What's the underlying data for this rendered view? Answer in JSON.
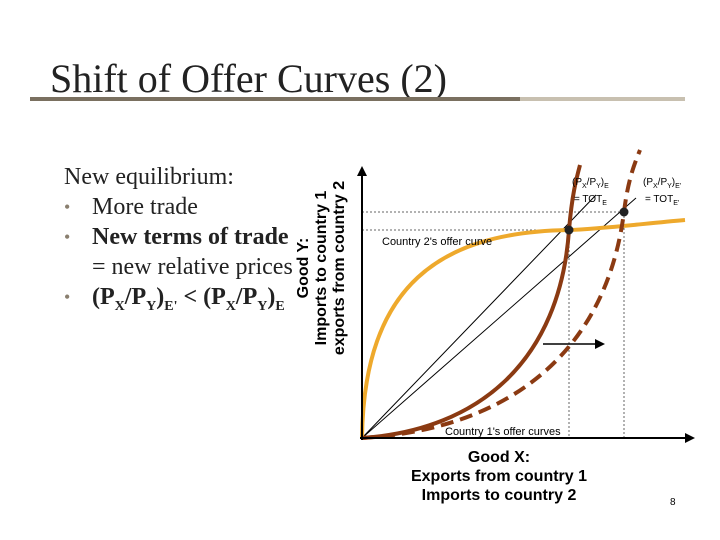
{
  "slide": {
    "title": "Shift of Offer Curves (2)",
    "page_number": "8"
  },
  "bullets": {
    "heading": "New equilibrium:",
    "item1": "More trade",
    "item2_bold": "New terms of trade",
    "item2_rest": " = new relative prices",
    "item3_p1": "(P",
    "item3_sub1": "X",
    "item3_p2": "/P",
    "item3_sub2": "Y",
    "item3_p3": ")",
    "item3_sub3": "E'",
    "item3_p4": " < (P",
    "item3_sub4": "X",
    "item3_p5": "/P",
    "item3_sub5": "Y",
    "item3_p6": ")",
    "item3_sub6": "E"
  },
  "diagram": {
    "y_axis_line1": "Good Y:",
    "y_axis_line2": "Imports to country 1",
    "y_axis_line3": "exports from country 2",
    "x_axis_line1": "Good X:",
    "x_axis_line2": "Exports from country 1",
    "x_axis_line3": "Imports to country 2",
    "country2_label": "Country 2's offer curve",
    "country1_label": "Country 1's offer curves",
    "tot_e": {
      "p1": "(P",
      "s1": "X",
      "p2": "/P",
      "s2": "Y",
      "p3": ")",
      "s3": "E",
      "line2": "= TOT",
      "s4": "E"
    },
    "tot_e_prime": {
      "p1": "(P",
      "s1": "X",
      "p2": "/P",
      "s2": "Y",
      "p3": ")",
      "s3": "E'",
      "line2": "= TOT",
      "s4": "E'"
    },
    "colors": {
      "country2_curve": "#eea92c",
      "country1_curve": "#8b3a12",
      "axis": "#000000",
      "guide": "#666666"
    }
  }
}
